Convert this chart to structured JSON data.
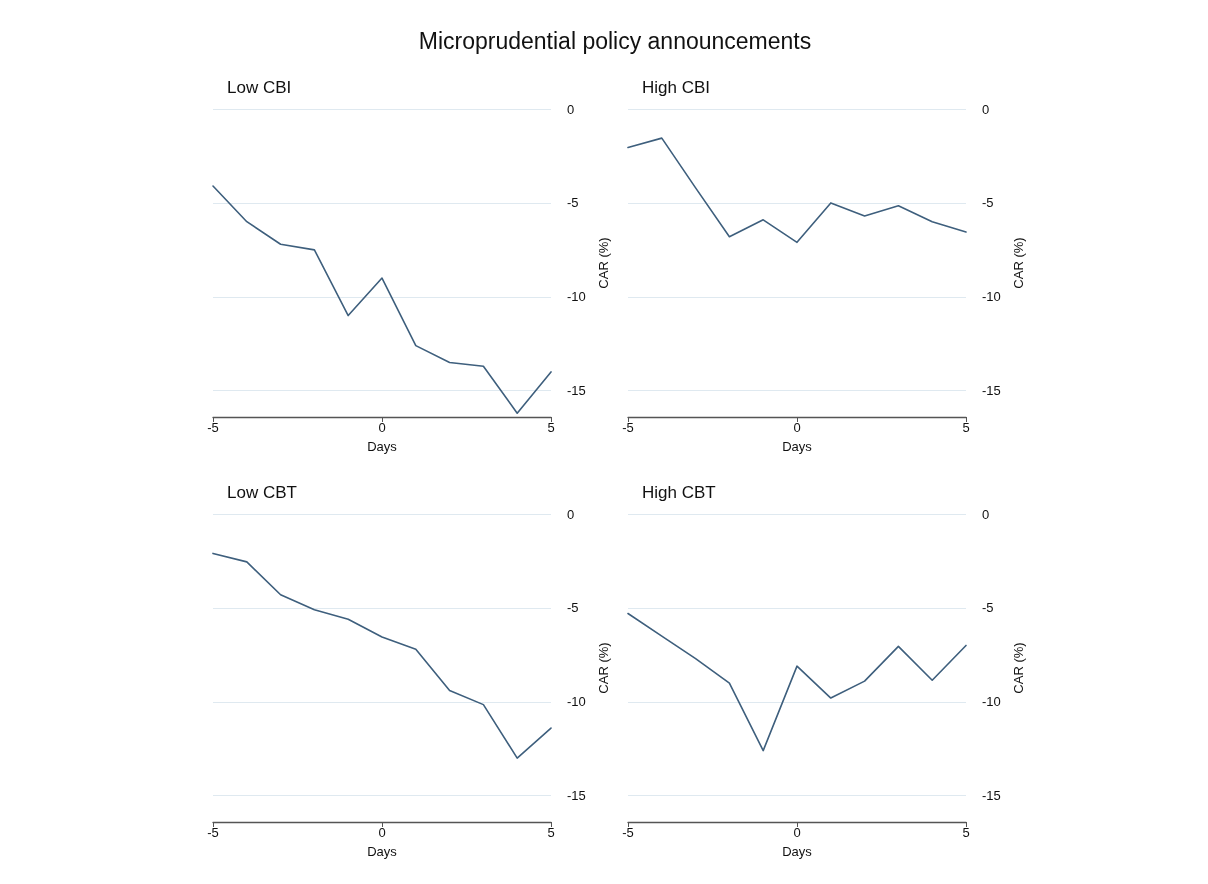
{
  "chart_data": [
    {
      "type": "line",
      "title": "Low CBI",
      "xlabel": "Days",
      "ylabel": "CAR (%)",
      "annotations": [
        "Microprudential policy announcements"
      ],
      "x": [
        -5,
        -4,
        -3,
        -2,
        -1,
        0,
        1,
        2,
        3,
        4,
        5
      ],
      "xlim": [
        -5,
        5
      ],
      "xticks": [
        -5,
        0,
        5
      ],
      "ylim": [
        -16.4,
        0
      ],
      "yticks": [
        -15,
        -10,
        -5,
        0
      ],
      "grid": "y",
      "marker": "none",
      "series": [
        {
          "color": "#3e5f7d",
          "values": [
            -4.1,
            -6.0,
            -7.2,
            -7.5,
            -11.0,
            -9.0,
            -12.6,
            -13.5,
            -13.7,
            -16.2,
            -14.0
          ]
        }
      ]
    },
    {
      "type": "line",
      "title": "High CBI",
      "xlabel": "Days",
      "ylabel": "CAR (%)",
      "x": [
        -5,
        -4,
        -3,
        -2,
        -1,
        0,
        1,
        2,
        3,
        4,
        5
      ],
      "xlim": [
        -5,
        5
      ],
      "xticks": [
        -5,
        0,
        5
      ],
      "ylim": [
        -16.4,
        0
      ],
      "yticks": [
        -15,
        -10,
        -5,
        0
      ],
      "grid": "y",
      "marker": "none",
      "series": [
        {
          "color": "#3e5f7d",
          "values": [
            -2.05,
            -1.55,
            -4.2,
            -6.8,
            -5.9,
            -7.1,
            -5.0,
            -5.7,
            -5.15,
            -6.0,
            -6.55
          ]
        }
      ]
    },
    {
      "type": "line",
      "title": "Low CBT",
      "xlabel": "Days",
      "ylabel": "CAR (%)",
      "x": [
        -5,
        -4,
        -3,
        -2,
        -1,
        0,
        1,
        2,
        3,
        4,
        5
      ],
      "xlim": [
        -5,
        5
      ],
      "xticks": [
        -5,
        0,
        5
      ],
      "ylim": [
        -16.4,
        0
      ],
      "yticks": [
        -15,
        -10,
        -5,
        0
      ],
      "grid": "y",
      "marker": "none",
      "series": [
        {
          "color": "#3e5f7d",
          "values": [
            -2.1,
            -2.55,
            -4.3,
            -5.1,
            -5.6,
            -6.55,
            -7.2,
            -9.4,
            -10.15,
            -13.0,
            -11.4
          ]
        }
      ]
    },
    {
      "type": "line",
      "title": "High CBT",
      "xlabel": "Days",
      "ylabel": "CAR (%)",
      "x": [
        -5,
        -4,
        -3,
        -2,
        -1,
        0,
        1,
        2,
        3,
        4,
        5
      ],
      "xlim": [
        -5,
        5
      ],
      "xticks": [
        -5,
        0,
        5
      ],
      "ylim": [
        -16.4,
        0
      ],
      "yticks": [
        -15,
        -10,
        -5,
        0
      ],
      "grid": "y",
      "marker": "none",
      "series": [
        {
          "color": "#3e5f7d",
          "values": [
            -5.3,
            -6.5,
            -7.7,
            -9.0,
            -12.6,
            -8.1,
            -9.8,
            -8.9,
            -7.05,
            -8.85,
            -7.0
          ]
        }
      ]
    }
  ]
}
